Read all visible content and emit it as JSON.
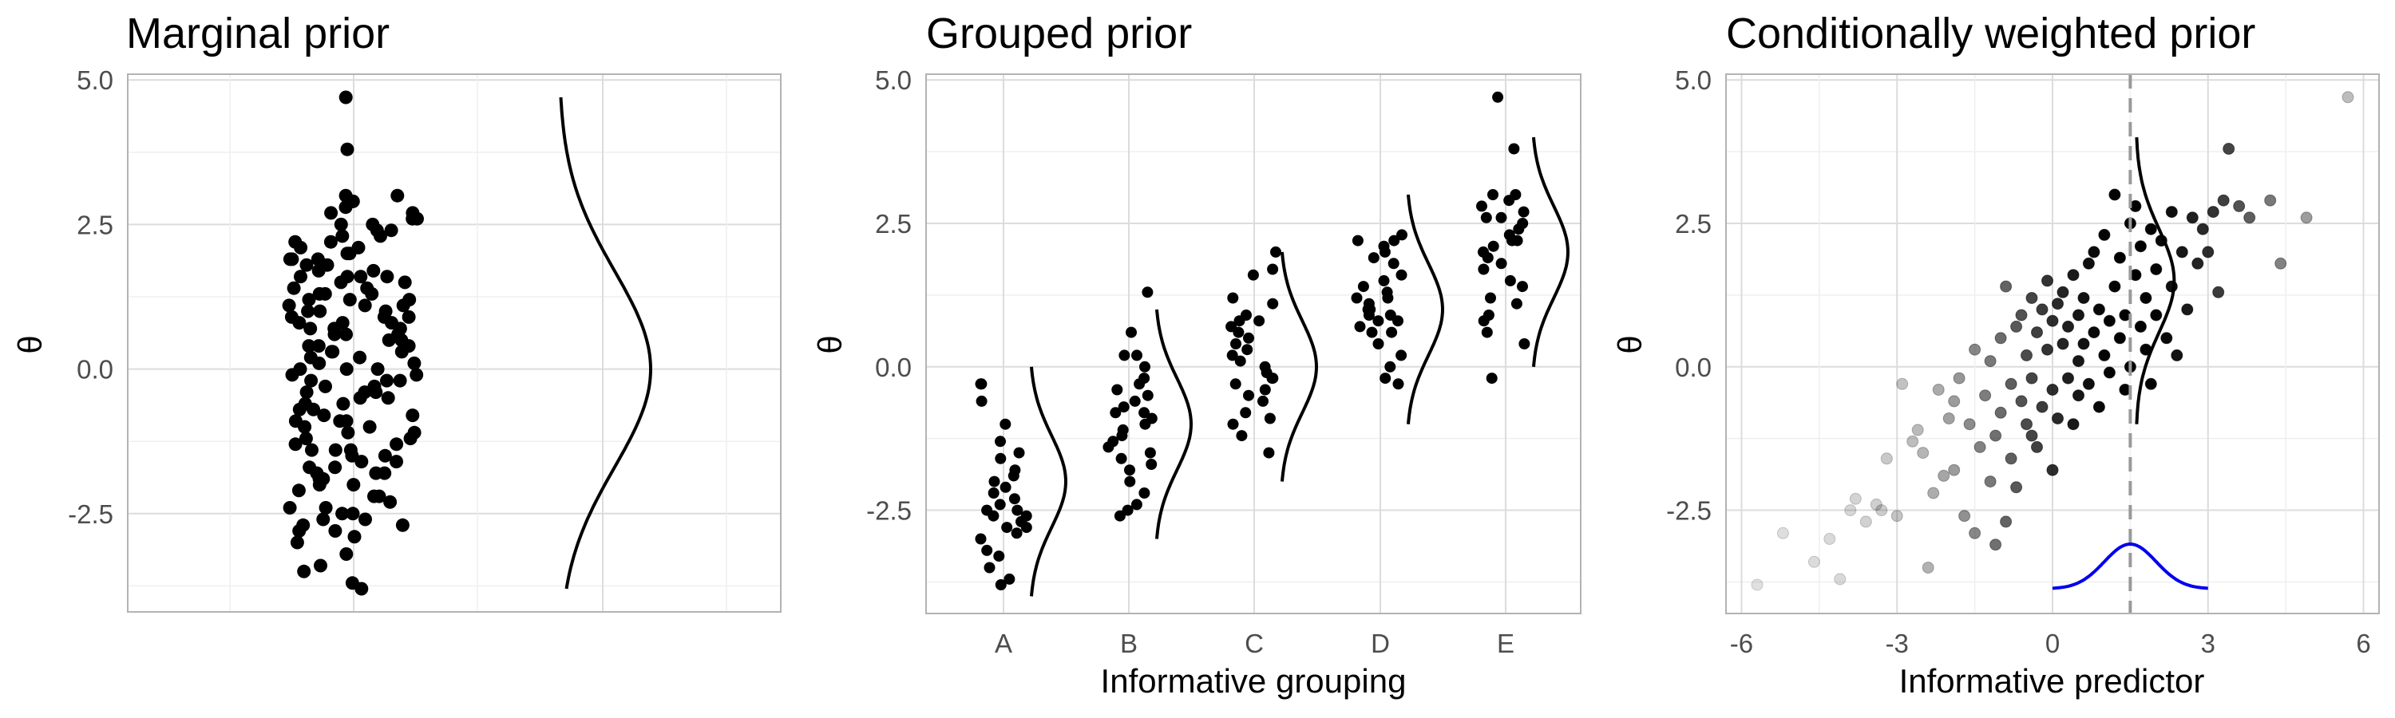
{
  "chart_data": [
    {
      "type": "scatter",
      "title": "Marginal prior",
      "xlabel": "",
      "ylabel": "θ",
      "ylim": [
        -4.2,
        5.1
      ],
      "y_ticks": [
        "-2.5",
        "0.0",
        "2.5",
        "5.0"
      ],
      "grid": true,
      "x_axis_labels_shown": false,
      "points_theta": [
        -3.7,
        -3.8,
        -3.5,
        -3.4,
        -3.2,
        -2.9,
        -2.8,
        -2.7,
        -2.6,
        -2.5,
        -2.4,
        -2.3,
        -2.2,
        -2.1,
        -2.0,
        -1.9,
        -1.8,
        -1.7,
        -1.6,
        -1.5,
        -1.4,
        -1.3,
        -1.2,
        -1.1,
        -1.0,
        -0.9,
        -0.8,
        -0.7,
        -0.6,
        -0.5,
        -0.4,
        -0.3,
        -0.2,
        -0.1,
        0.0,
        0.1,
        0.2,
        0.3,
        0.4,
        0.5,
        0.6,
        0.7,
        0.8,
        0.9,
        1.0,
        1.1,
        1.2,
        1.3,
        1.4,
        1.5,
        1.6,
        1.7,
        1.8,
        1.9,
        2.0,
        2.1,
        2.2,
        2.3,
        2.4,
        2.5,
        2.6,
        2.7,
        2.8,
        2.9,
        3.0,
        3.0,
        3.8,
        4.7,
        -2.6,
        -2.0,
        -1.5,
        -1.2,
        -0.8,
        -0.5,
        -0.2,
        0.1,
        0.4,
        0.7,
        1.0,
        1.3,
        1.6,
        1.9,
        2.2,
        -2.8,
        -1.8,
        -0.9,
        0.0,
        0.9,
        1.8,
        2.7,
        -2.4,
        -1.4,
        -0.4,
        0.6,
        1.6,
        2.6,
        -1.1,
        0.3,
        1.1,
        2.0,
        -0.6,
        0.8,
        1.5,
        -1.9,
        -0.1,
        1.2,
        2.3,
        -2.2,
        -0.3,
        0.5,
        1.7,
        -1.6,
        0.2,
        1.4,
        -0.7,
        0.9,
        2.1,
        -1.3,
        0.6,
        1.0,
        -2.5,
        -0.9,
        1.3,
        2.9,
        -3.0,
        -1.7,
        0.4,
        1.8,
        2.4,
        -0.4,
        0.7,
        1.1,
        -1.0,
        0.0,
        2.5,
        -2.7,
        -1.4,
        0.8,
        1.9,
        -0.2,
        1.6,
        -1.8,
        0.3,
        1.2
      ],
      "density": {
        "mean": 0.0,
        "sd": 1.7,
        "from": -3.8,
        "to": 4.7
      }
    },
    {
      "type": "scatter",
      "title": "Grouped prior",
      "xlabel": "Informative grouping",
      "ylabel": "θ",
      "ylim": [
        -4.3,
        5.1
      ],
      "y_ticks": [
        "-2.5",
        "0.0",
        "2.5",
        "5.0"
      ],
      "categories": [
        "A",
        "B",
        "C",
        "D",
        "E"
      ],
      "grid": true,
      "groups": [
        {
          "name": "A",
          "mean": -2.0,
          "points": [
            -3.8,
            -3.7,
            -3.5,
            -3.3,
            -3.2,
            -3.0,
            -2.9,
            -2.8,
            -2.7,
            -2.6,
            -2.6,
            -2.5,
            -2.4,
            -2.3,
            -2.2,
            -2.1,
            -2.0,
            -1.9,
            -1.8,
            -1.6,
            -1.5,
            -1.3,
            -1.0,
            -0.6,
            -0.3,
            -0.3,
            -2.5,
            -2.8
          ]
        },
        {
          "name": "B",
          "mean": -1.0,
          "points": [
            -2.6,
            -2.5,
            -2.4,
            -2.2,
            -2.0,
            -1.8,
            -1.7,
            -1.6,
            -1.5,
            -1.3,
            -1.2,
            -1.1,
            -1.0,
            -0.9,
            -0.8,
            -0.7,
            -0.6,
            -0.5,
            -0.4,
            -0.3,
            -0.2,
            0.0,
            0.2,
            0.2,
            0.6,
            1.3,
            -1.4,
            -0.8
          ]
        },
        {
          "name": "C",
          "mean": 0.0,
          "points": [
            -1.5,
            -1.2,
            -1.0,
            -0.9,
            -0.8,
            -0.6,
            -0.5,
            -0.4,
            -0.3,
            -0.2,
            -0.2,
            -0.1,
            0.0,
            0.1,
            0.2,
            0.3,
            0.4,
            0.5,
            0.6,
            0.7,
            0.8,
            0.8,
            0.9,
            1.1,
            1.2,
            1.6,
            1.7,
            2.0
          ]
        },
        {
          "name": "D",
          "mean": 1.0,
          "points": [
            -0.3,
            -0.2,
            0.0,
            0.2,
            0.4,
            0.6,
            0.7,
            0.8,
            0.8,
            0.9,
            1.0,
            1.0,
            1.1,
            1.2,
            1.3,
            1.4,
            1.5,
            1.6,
            1.8,
            1.9,
            2.0,
            2.1,
            2.2,
            2.2,
            2.3,
            0.9,
            1.2,
            0.6
          ]
        },
        {
          "name": "E",
          "mean": 2.0,
          "points": [
            -0.2,
            0.4,
            0.6,
            0.8,
            0.9,
            1.1,
            1.2,
            1.4,
            1.5,
            1.7,
            1.8,
            1.9,
            2.0,
            2.1,
            2.2,
            2.3,
            2.4,
            2.5,
            2.6,
            2.6,
            2.7,
            2.8,
            2.9,
            3.0,
            3.0,
            3.8,
            4.7,
            2.2
          ]
        }
      ],
      "density_sd": 0.8,
      "density_halfrange": 2.0
    },
    {
      "type": "scatter",
      "title": "Conditionally weighted prior",
      "xlabel": "Informative predictor",
      "ylabel": "θ",
      "xlim": [
        -6.3,
        6.3
      ],
      "ylim": [
        -4.3,
        5.1
      ],
      "x_ticks": [
        "-6",
        "-3",
        "0",
        "3",
        "6"
      ],
      "y_ticks": [
        "-2.5",
        "0.0",
        "2.5",
        "5.0"
      ],
      "grid": true,
      "reference_x": 1.5,
      "weight_curve": {
        "center": 1.5,
        "sd": 0.5,
        "from": 0.0,
        "to": 3.0,
        "color": "#0000ee"
      },
      "theta_density": {
        "mean": 1.5,
        "sd": 0.9,
        "from": -1.0,
        "to": 4.0
      },
      "points": [
        [
          -5.7,
          -3.8
        ],
        [
          -5.2,
          -2.9
        ],
        [
          -4.6,
          -3.4
        ],
        [
          -4.3,
          -3.0
        ],
        [
          -4.1,
          -3.7
        ],
        [
          -3.9,
          -2.5
        ],
        [
          -3.8,
          -2.3
        ],
        [
          -3.6,
          -2.7
        ],
        [
          -3.4,
          -2.4
        ],
        [
          -3.3,
          -2.5
        ],
        [
          -3.0,
          -2.6
        ],
        [
          -2.9,
          -0.3
        ],
        [
          -2.7,
          -1.3
        ],
        [
          -2.5,
          -1.5
        ],
        [
          -2.4,
          -3.5
        ],
        [
          -2.3,
          -2.2
        ],
        [
          -2.2,
          -0.4
        ],
        [
          -2.0,
          -0.9
        ],
        [
          -1.9,
          -1.8
        ],
        [
          -1.8,
          -0.2
        ],
        [
          -1.7,
          -2.6
        ],
        [
          -1.6,
          -1.0
        ],
        [
          -1.5,
          -2.9
        ],
        [
          -1.5,
          0.3
        ],
        [
          -1.4,
          -1.4
        ],
        [
          -1.3,
          -0.5
        ],
        [
          -1.2,
          0.1
        ],
        [
          -1.2,
          -2.0
        ],
        [
          -1.1,
          -1.2
        ],
        [
          -1.0,
          0.5
        ],
        [
          -1.0,
          -0.8
        ],
        [
          -0.9,
          1.4
        ],
        [
          -0.8,
          -0.3
        ],
        [
          -0.8,
          -1.6
        ],
        [
          -0.7,
          0.7
        ],
        [
          -0.7,
          -2.1
        ],
        [
          -0.6,
          -0.6
        ],
        [
          -0.6,
          0.9
        ],
        [
          -0.5,
          -1.0
        ],
        [
          -0.5,
          0.2
        ],
        [
          -0.4,
          1.2
        ],
        [
          -0.4,
          -0.2
        ],
        [
          -0.3,
          -1.4
        ],
        [
          -0.3,
          0.6
        ],
        [
          -0.2,
          1.0
        ],
        [
          -0.2,
          -0.7
        ],
        [
          -0.1,
          0.3
        ],
        [
          -0.1,
          1.5
        ],
        [
          0.0,
          -0.4
        ],
        [
          0.0,
          0.8
        ],
        [
          0.0,
          -1.8
        ],
        [
          0.1,
          1.1
        ],
        [
          0.1,
          -0.9
        ],
        [
          0.2,
          0.4
        ],
        [
          0.2,
          1.3
        ],
        [
          0.3,
          -0.2
        ],
        [
          0.3,
          0.7
        ],
        [
          0.4,
          -1.0
        ],
        [
          0.4,
          1.6
        ],
        [
          0.5,
          0.1
        ],
        [
          0.5,
          0.9
        ],
        [
          0.5,
          -0.5
        ],
        [
          0.6,
          1.2
        ],
        [
          0.6,
          0.4
        ],
        [
          0.7,
          -0.3
        ],
        [
          0.7,
          1.8
        ],
        [
          0.8,
          0.6
        ],
        [
          0.8,
          2.0
        ],
        [
          0.9,
          -0.7
        ],
        [
          0.9,
          1.0
        ],
        [
          1.0,
          0.2
        ],
        [
          1.0,
          2.3
        ],
        [
          1.1,
          0.8
        ],
        [
          1.1,
          -0.1
        ],
        [
          1.2,
          1.4
        ],
        [
          1.2,
          3.0
        ],
        [
          1.3,
          0.5
        ],
        [
          1.3,
          1.9
        ],
        [
          1.4,
          0.9
        ],
        [
          1.4,
          -0.4
        ],
        [
          1.5,
          2.5
        ],
        [
          1.5,
          0.0
        ],
        [
          1.6,
          1.6
        ],
        [
          1.6,
          2.8
        ],
        [
          1.7,
          0.7
        ],
        [
          1.7,
          2.1
        ],
        [
          1.8,
          1.2
        ],
        [
          1.8,
          0.3
        ],
        [
          1.9,
          2.4
        ],
        [
          1.9,
          -0.3
        ],
        [
          2.0,
          1.7
        ],
        [
          2.0,
          0.9
        ],
        [
          2.1,
          2.2
        ],
        [
          2.2,
          0.5
        ],
        [
          2.3,
          1.4
        ],
        [
          2.3,
          2.7
        ],
        [
          2.4,
          0.2
        ],
        [
          2.5,
          2.0
        ],
        [
          2.6,
          1.0
        ],
        [
          2.7,
          2.6
        ],
        [
          2.8,
          1.8
        ],
        [
          2.9,
          2.4
        ],
        [
          3.0,
          2.0
        ],
        [
          3.1,
          2.7
        ],
        [
          3.2,
          1.3
        ],
        [
          3.3,
          2.9
        ],
        [
          3.4,
          3.8
        ],
        [
          3.6,
          2.8
        ],
        [
          3.8,
          2.6
        ],
        [
          4.2,
          2.9
        ],
        [
          4.4,
          1.8
        ],
        [
          4.9,
          2.6
        ],
        [
          5.7,
          4.7
        ],
        [
          -1.9,
          -0.6
        ],
        [
          -2.6,
          -1.1
        ],
        [
          -3.2,
          -1.6
        ],
        [
          -0.9,
          -2.7
        ],
        [
          -1.1,
          -3.1
        ],
        [
          -2.1,
          -1.9
        ],
        [
          -0.4,
          -1.2
        ]
      ]
    }
  ]
}
